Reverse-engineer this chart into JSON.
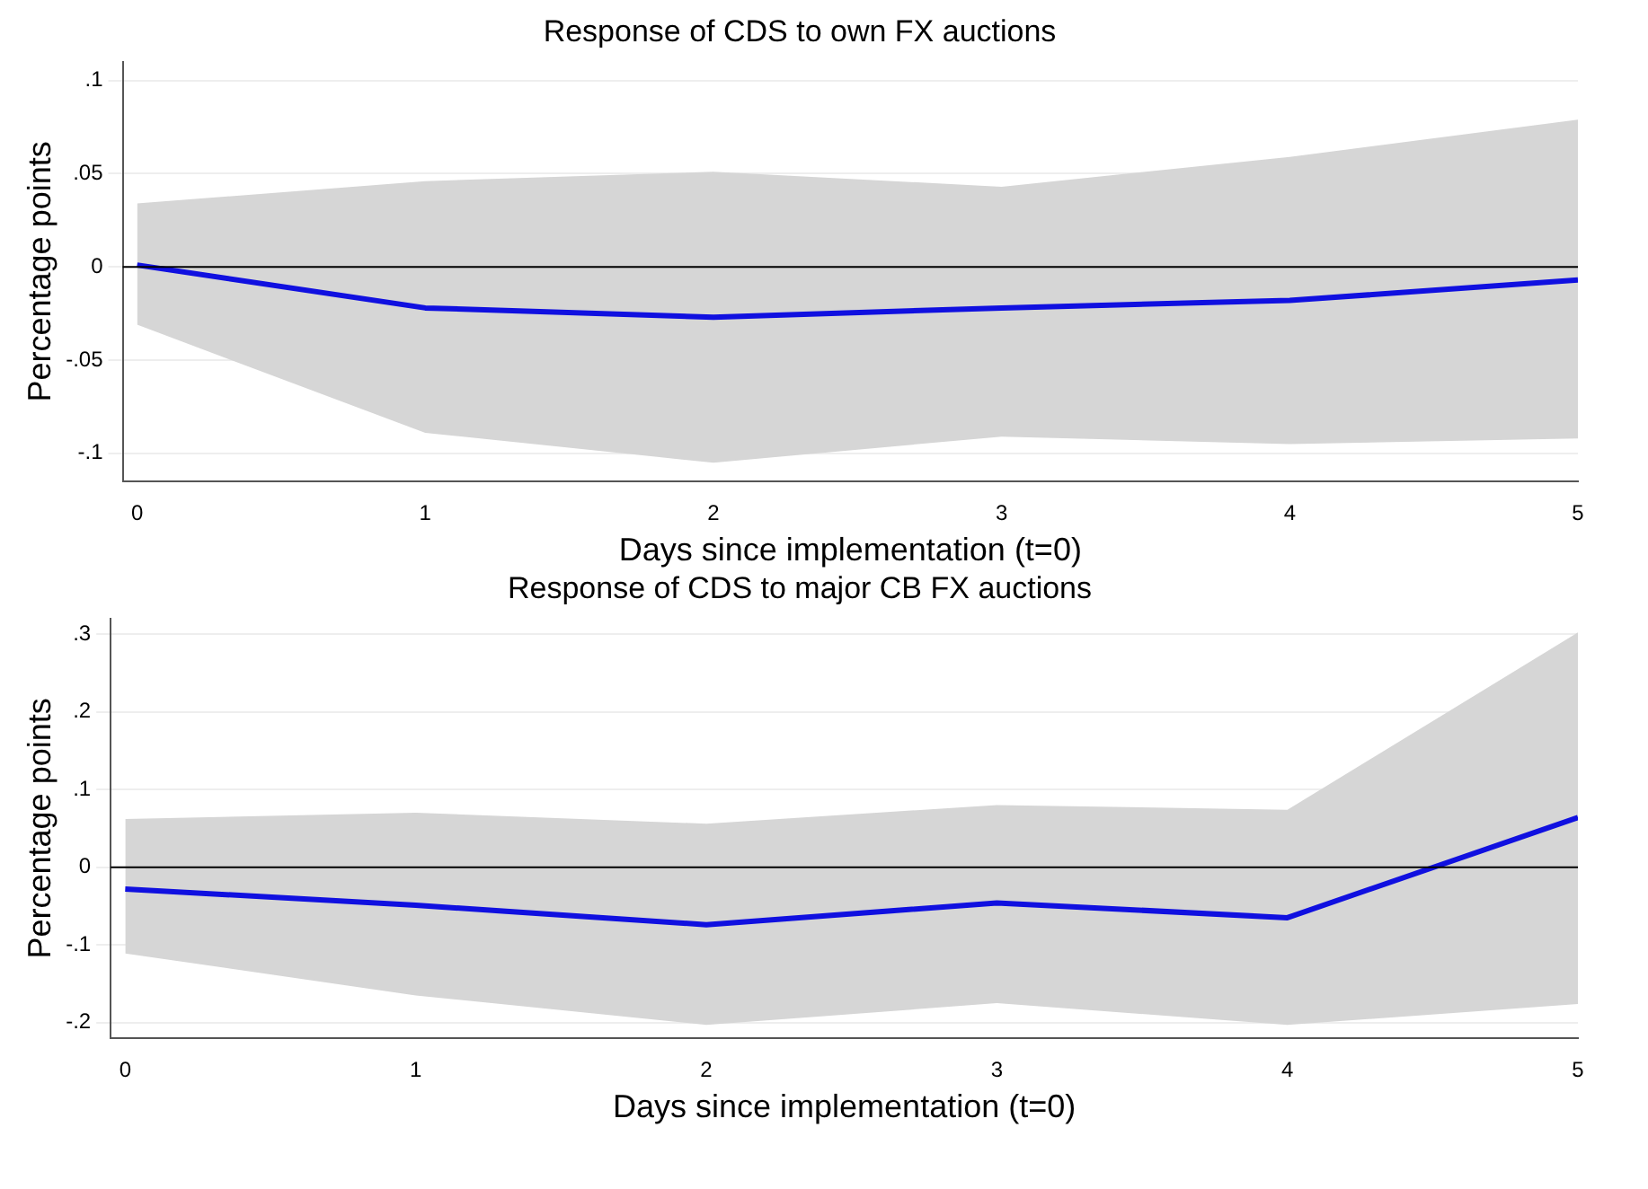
{
  "chart_data": [
    {
      "type": "line",
      "title": "Response of CDS to own FX auctions",
      "xlabel": "Days since implementation (t=0)",
      "ylabel": "Percentage points",
      "x": [
        0,
        1,
        2,
        3,
        4,
        5
      ],
      "xlim": [
        -0.05,
        5
      ],
      "xticks": [
        0,
        1,
        2,
        3,
        4,
        5
      ],
      "ylim": [
        -0.115,
        0.11
      ],
      "yticks": [
        {
          "value": -0.1,
          "label": "-.1"
        },
        {
          "value": -0.05,
          "label": "-.05"
        },
        0,
        {
          "value": 0.05,
          "label": ".05"
        },
        {
          "value": 0.1,
          "label": ".1"
        }
      ],
      "grid": "y",
      "legend": false,
      "marker": "none",
      "line_style": "solid",
      "series": [
        {
          "color": "#1010e0",
          "values": [
            0.001,
            -0.022,
            -0.027,
            -0.022,
            -0.018,
            -0.007
          ],
          "lower": [
            -0.031,
            -0.089,
            -0.105,
            -0.091,
            -0.095,
            -0.092
          ],
          "upper": [
            0.034,
            0.046,
            0.051,
            0.043,
            0.059,
            0.079
          ]
        }
      ],
      "ref_lines": [
        {
          "axis": "y",
          "value": 0,
          "color": "#000000"
        }
      ]
    },
    {
      "type": "line",
      "title": "Response of CDS to major CB FX auctions",
      "xlabel": "Days since implementation (t=0)",
      "ylabel": "Percentage points",
      "x": [
        0,
        1,
        2,
        3,
        4,
        5
      ],
      "xlim": [
        -0.05,
        5
      ],
      "xticks": [
        0,
        1,
        2,
        3,
        4,
        5
      ],
      "ylim": [
        -0.22,
        0.32
      ],
      "yticks": [
        {
          "value": -0.2,
          "label": "-.2"
        },
        {
          "value": -0.1,
          "label": "-.1"
        },
        0,
        {
          "value": 0.1,
          "label": ".1"
        },
        {
          "value": 0.2,
          "label": ".2"
        },
        {
          "value": 0.3,
          "label": ".3"
        }
      ],
      "grid": "y",
      "legend": false,
      "marker": "none",
      "line_style": "solid",
      "series": [
        {
          "color": "#1010e0",
          "values": [
            -0.028,
            -0.049,
            -0.074,
            -0.046,
            -0.065,
            0.064
          ],
          "lower": [
            -0.111,
            -0.165,
            -0.203,
            -0.175,
            -0.203,
            -0.176
          ],
          "upper": [
            0.062,
            0.07,
            0.056,
            0.08,
            0.074,
            0.302
          ]
        }
      ],
      "ref_lines": [
        {
          "axis": "y",
          "value": 0,
          "color": "#000000"
        }
      ]
    }
  ]
}
